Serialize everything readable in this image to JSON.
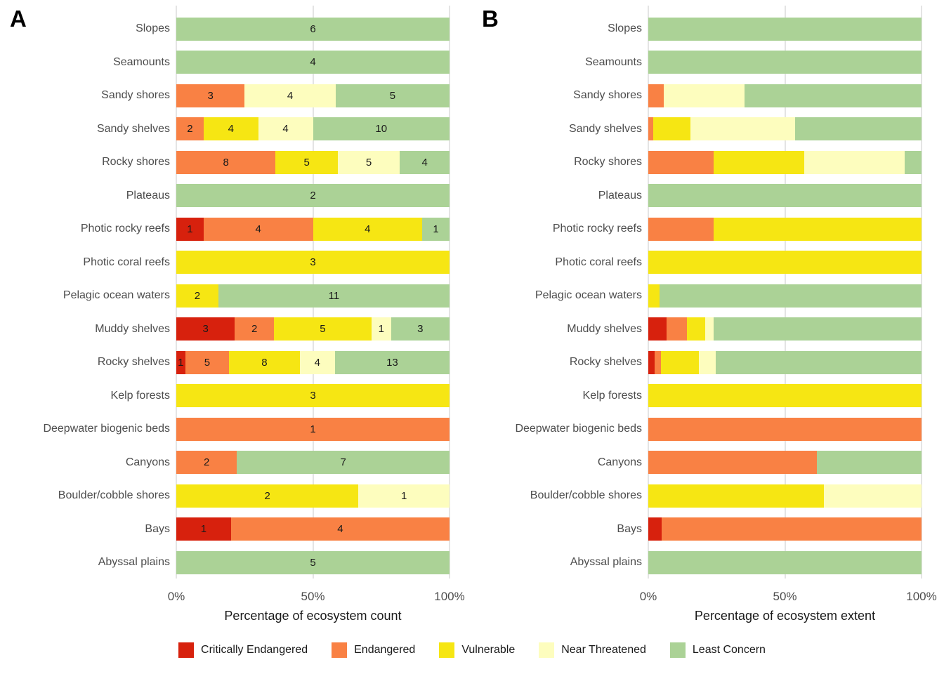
{
  "figure": {
    "panel_a_letter": "A",
    "panel_b_letter": "B"
  },
  "colors": {
    "critically_endangered": "#d7210d",
    "endangered": "#f98144",
    "vulnerable": "#f6e613",
    "near_threatened": "#fdfdbe",
    "least_concern": "#abd296",
    "gridline": "#e4e4e4",
    "category_label": "#4d4d4d",
    "tick_label": "#4d4d4d",
    "segment_label": "#1a1a1a"
  },
  "legend": {
    "items": [
      {
        "label": "Critically Endangered",
        "color": "#d7210d"
      },
      {
        "label": "Endangered",
        "color": "#f98144"
      },
      {
        "label": "Vulnerable",
        "color": "#f6e613"
      },
      {
        "label": "Near Threatened",
        "color": "#fdfdbe"
      },
      {
        "label": "Least Concern",
        "color": "#abd296"
      }
    ]
  },
  "chart_data": [
    {
      "type": "bar",
      "panel_label": "A",
      "orientation": "horizontal",
      "stacked": true,
      "normalized_to_100_percent_per_row": true,
      "show_value_labels": true,
      "xlabel": "Percentage of ecosystem count",
      "x_ticks": [
        "0%",
        "50%",
        "100%"
      ],
      "xlim": [
        0,
        100
      ],
      "grid": true,
      "categories": [
        "Slopes",
        "Seamounts",
        "Sandy shores",
        "Sandy shelves",
        "Rocky shores",
        "Plateaus",
        "Photic rocky reefs",
        "Photic coral reefs",
        "Pelagic ocean waters",
        "Muddy shelves",
        "Rocky shelves",
        "Kelp forests",
        "Deepwater biogenic beds",
        "Canyons",
        "Boulder/cobble shores",
        "Bays",
        "Abyssal plains"
      ],
      "values_unit": "ecosystem count",
      "series": [
        {
          "name": "Critically Endangered",
          "values": [
            0,
            0,
            0,
            0,
            0,
            0,
            1,
            0,
            0,
            3,
            1,
            0,
            0,
            0,
            0,
            1,
            0
          ]
        },
        {
          "name": "Endangered",
          "values": [
            0,
            0,
            3,
            2,
            8,
            0,
            4,
            0,
            0,
            2,
            5,
            0,
            1,
            2,
            0,
            4,
            0
          ]
        },
        {
          "name": "Vulnerable",
          "values": [
            0,
            0,
            0,
            4,
            5,
            0,
            4,
            3,
            2,
            5,
            8,
            3,
            0,
            0,
            2,
            0,
            0
          ]
        },
        {
          "name": "Near Threatened",
          "values": [
            0,
            0,
            4,
            4,
            5,
            0,
            0,
            0,
            0,
            1,
            4,
            0,
            0,
            0,
            1,
            0,
            0
          ]
        },
        {
          "name": "Least Concern",
          "values": [
            6,
            4,
            5,
            10,
            4,
            2,
            1,
            0,
            11,
            3,
            13,
            0,
            0,
            7,
            0,
            0,
            5
          ]
        }
      ]
    },
    {
      "type": "bar",
      "panel_label": "B",
      "orientation": "horizontal",
      "stacked": true,
      "normalized_to_100_percent_per_row": true,
      "show_value_labels": false,
      "xlabel": "Percentage of ecosystem extent",
      "x_ticks": [
        "0%",
        "50%",
        "100%"
      ],
      "xlim": [
        0,
        100
      ],
      "grid": true,
      "categories": [
        "Slopes",
        "Seamounts",
        "Sandy shores",
        "Sandy shelves",
        "Rocky shores",
        "Plateaus",
        "Photic rocky reefs",
        "Photic coral reefs",
        "Pelagic ocean waters",
        "Muddy shelves",
        "Rocky shelves",
        "Kelp forests",
        "Deepwater biogenic beds",
        "Canyons",
        "Boulder/cobble shores",
        "Bays",
        "Abyssal plains"
      ],
      "values_unit": "percent of ecosystem extent",
      "series": [
        {
          "name": "Critically Endangered",
          "values": [
            0,
            0,
            0,
            0,
            0,
            0,
            0,
            0,
            0,
            6.8,
            2.4,
            0,
            0,
            0,
            0,
            4.9,
            0
          ]
        },
        {
          "name": "Endangered",
          "values": [
            0,
            0,
            5.6,
            1.9,
            23.9,
            0,
            23.8,
            0,
            0,
            7.3,
            2.1,
            0,
            100,
            61.7,
            0,
            95.1,
            0
          ]
        },
        {
          "name": "Vulnerable",
          "values": [
            0,
            0,
            0,
            13.4,
            33.1,
            0,
            76.2,
            100,
            4,
            6.7,
            14.1,
            100,
            0,
            0,
            64.3,
            0,
            0
          ]
        },
        {
          "name": "Near Threatened",
          "values": [
            0,
            0,
            29.6,
            38.4,
            36.9,
            0,
            0,
            0,
            0,
            3,
            6.2,
            0,
            0,
            0,
            35.7,
            0,
            0
          ]
        },
        {
          "name": "Least Concern",
          "values": [
            100,
            100,
            64.8,
            46.3,
            6.1,
            100,
            0,
            0,
            96,
            76.2,
            75.2,
            0,
            0,
            38.3,
            0,
            0,
            100
          ]
        }
      ]
    }
  ]
}
